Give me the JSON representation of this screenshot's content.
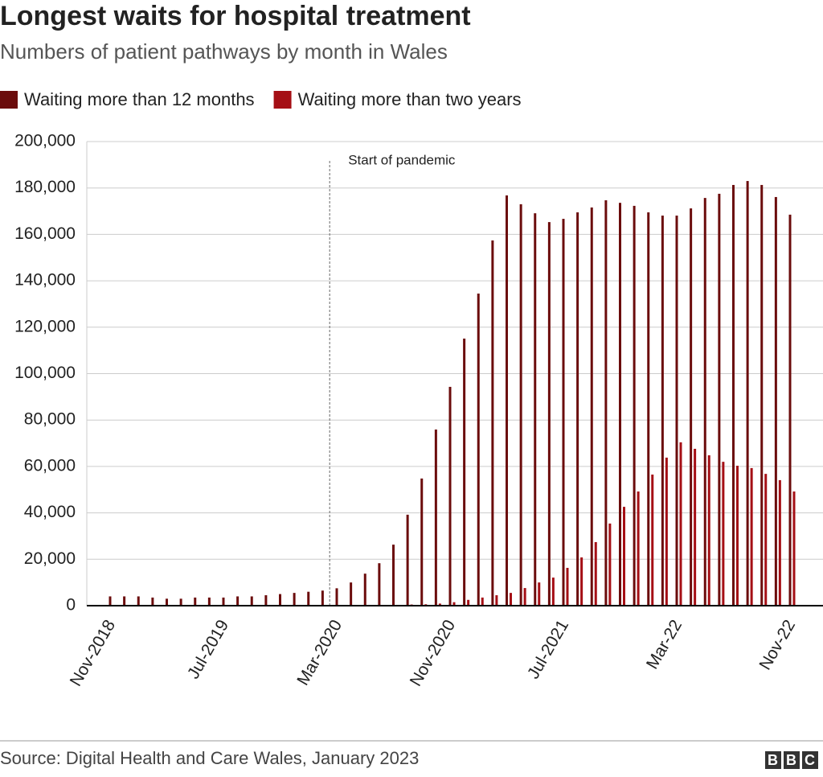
{
  "chart_data": {
    "type": "bar",
    "title": "Longest waits for hospital treatment",
    "subtitle": "Numbers of patient pathways by month in Wales",
    "categories": [
      "Nov-2018",
      null,
      null,
      null,
      null,
      null,
      null,
      null,
      "Jul-2019",
      null,
      null,
      null,
      null,
      null,
      null,
      null,
      "Mar-2020",
      null,
      null,
      null,
      null,
      null,
      null,
      null,
      "Nov-2020",
      null,
      null,
      null,
      null,
      null,
      null,
      null,
      "Jul-2021",
      null,
      null,
      null,
      null,
      null,
      null,
      null,
      "Mar-22",
      null,
      null,
      null,
      null,
      null,
      null,
      null,
      "Nov-22"
    ],
    "series": [
      {
        "name": "Waiting more than 12 months",
        "color": "#6b0c0c",
        "values": [
          4000,
          4000,
          4000,
          3500,
          3000,
          3000,
          3500,
          3500,
          3500,
          4000,
          4000,
          4500,
          5000,
          5500,
          6000,
          6500,
          7500,
          10000,
          13800,
          18300,
          26300,
          39200,
          54800,
          75900,
          94300,
          115100,
          134500,
          157400,
          176800,
          173000,
          169100,
          165300,
          166700,
          169500,
          171600,
          174700,
          173600,
          172300,
          169500,
          168100,
          168100,
          171200,
          175700,
          177500,
          181300,
          183000,
          181300,
          176100,
          168500
        ]
      },
      {
        "name": "Waiting more than two years",
        "color": "#a50f15",
        "values": [
          0,
          0,
          0,
          0,
          0,
          0,
          0,
          0,
          0,
          0,
          0,
          0,
          0,
          0,
          0,
          0,
          0,
          0,
          0,
          0,
          0,
          500,
          600,
          900,
          1500,
          2500,
          3500,
          4500,
          5500,
          7600,
          10000,
          12100,
          16300,
          20800,
          27400,
          35400,
          42600,
          49200,
          56500,
          63800,
          70400,
          67600,
          64800,
          62000,
          60300,
          59300,
          56800,
          54100,
          49200
        ]
      }
    ],
    "ylim": [
      0,
      200000
    ],
    "yticks": [
      0,
      {
        "value": 20000,
        "label": "20,000"
      },
      {
        "value": 40000,
        "label": "40,000"
      },
      {
        "value": 60000,
        "label": "60,000"
      },
      {
        "value": 80000,
        "label": "80,000"
      },
      {
        "value": 100000,
        "label": "100,000"
      },
      {
        "value": 120000,
        "label": "120,000"
      },
      {
        "value": 140000,
        "label": "140,000"
      },
      {
        "value": 160000,
        "label": "160,000"
      },
      {
        "value": 180000,
        "label": "180,000"
      },
      {
        "value": 200000,
        "label": "200,000"
      }
    ],
    "grid": true,
    "annotation": "Start of pandemic",
    "source": "Source: Digital Health and Care Wales, January 2023",
    "logo": "BBC"
  }
}
